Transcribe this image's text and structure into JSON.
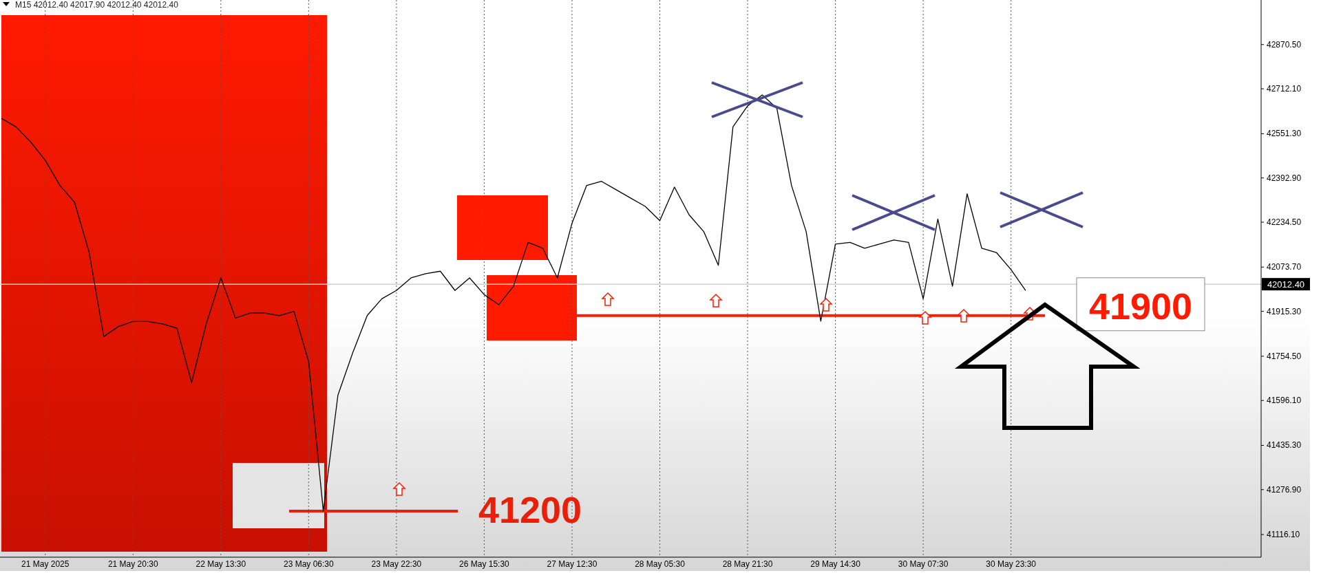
{
  "chart_data": {
    "type": "line",
    "title": "M15  42012.40 42017.90 42012.40 42012.40",
    "categories": [
      null,
      null,
      null,
      "21 May 2025",
      null,
      null,
      null,
      null,
      null,
      "21 May 20:30",
      null,
      null,
      null,
      null,
      null,
      "22 May 13:30",
      null,
      null,
      null,
      null,
      null,
      "23 May 06:30",
      null,
      null,
      null,
      null,
      null,
      "23 May 22:30",
      null,
      null,
      null,
      null,
      null,
      "26 May 15:30",
      null,
      null,
      null,
      null,
      null,
      "27 May 12:30",
      null,
      null,
      null,
      null,
      null,
      "28 May 05:30",
      null,
      null,
      null,
      null,
      null,
      "28 May 21:30",
      null,
      null,
      null,
      null,
      null,
      "29 May 14:30",
      null,
      null,
      null,
      null,
      null,
      "30 May 07:30",
      null,
      null,
      null,
      null,
      null,
      "30 May 23:30",
      null,
      null,
      null,
      null,
      null,
      null,
      null,
      null,
      null,
      null,
      null,
      null,
      null,
      null,
      null,
      null,
      null
    ],
    "series": [
      {
        "color": "#000000",
        "values": [
          42606,
          42576,
          42522,
          42456,
          42366,
          42306,
          42126,
          41825,
          41861,
          41879,
          41879,
          41870,
          41855,
          41660,
          41870,
          42035,
          41891,
          41909,
          41909,
          41900,
          41915,
          41735,
          41200,
          41615,
          41765,
          41900,
          41960,
          41990,
          42035,
          42050,
          42059,
          41990,
          42035,
          41975,
          41939,
          42005,
          42162,
          42141,
          42035,
          42231,
          42366,
          42381,
          42351,
          42321,
          42291,
          42240,
          42360,
          42261,
          42201,
          42080,
          42576,
          42651,
          42690,
          42642,
          42366,
          42201,
          41880,
          42156,
          42162,
          42141,
          42156,
          42171,
          42162,
          41960,
          42246,
          42005,
          42336,
          42141,
          42126,
          42065,
          41990,
          null,
          null,
          null,
          null,
          null,
          null,
          null,
          null,
          null,
          null,
          null,
          null,
          null,
          null,
          null,
          null
        ]
      }
    ],
    "ylim": [
      41035,
      43030
    ],
    "yticks": [
      {
        "value": 41116.1,
        "label": "41116.10"
      },
      {
        "value": 41276.9,
        "label": "41276.90"
      },
      {
        "value": 41435.3,
        "label": "41435.30"
      },
      {
        "value": 41596.1,
        "label": "41596.10"
      },
      {
        "value": 41754.5,
        "label": "41754.50"
      },
      {
        "value": 41915.3,
        "label": "41915.30"
      },
      {
        "value": 42073.7,
        "label": "42073.70"
      },
      {
        "value": 42234.5,
        "label": "42234.50"
      },
      {
        "value": 42392.9,
        "label": "42392.90"
      },
      {
        "value": 42551.3,
        "label": "42551.30"
      },
      {
        "value": 42712.1,
        "label": "42712.10"
      },
      {
        "value": 42870.5,
        "label": "42870.50"
      }
    ],
    "ref_lines": [
      {
        "axis": "y",
        "value": 42012.4,
        "label": "42012.40",
        "color": "#d0d0d0"
      },
      {
        "axis": "y",
        "value": 41900,
        "label": "41900",
        "color": "#ff1a00"
      },
      {
        "axis": "y",
        "value": 41200,
        "label": "41200",
        "color": "#e8200a"
      }
    ],
    "grid": "x",
    "marker": "none",
    "line_style": "solid"
  }
}
